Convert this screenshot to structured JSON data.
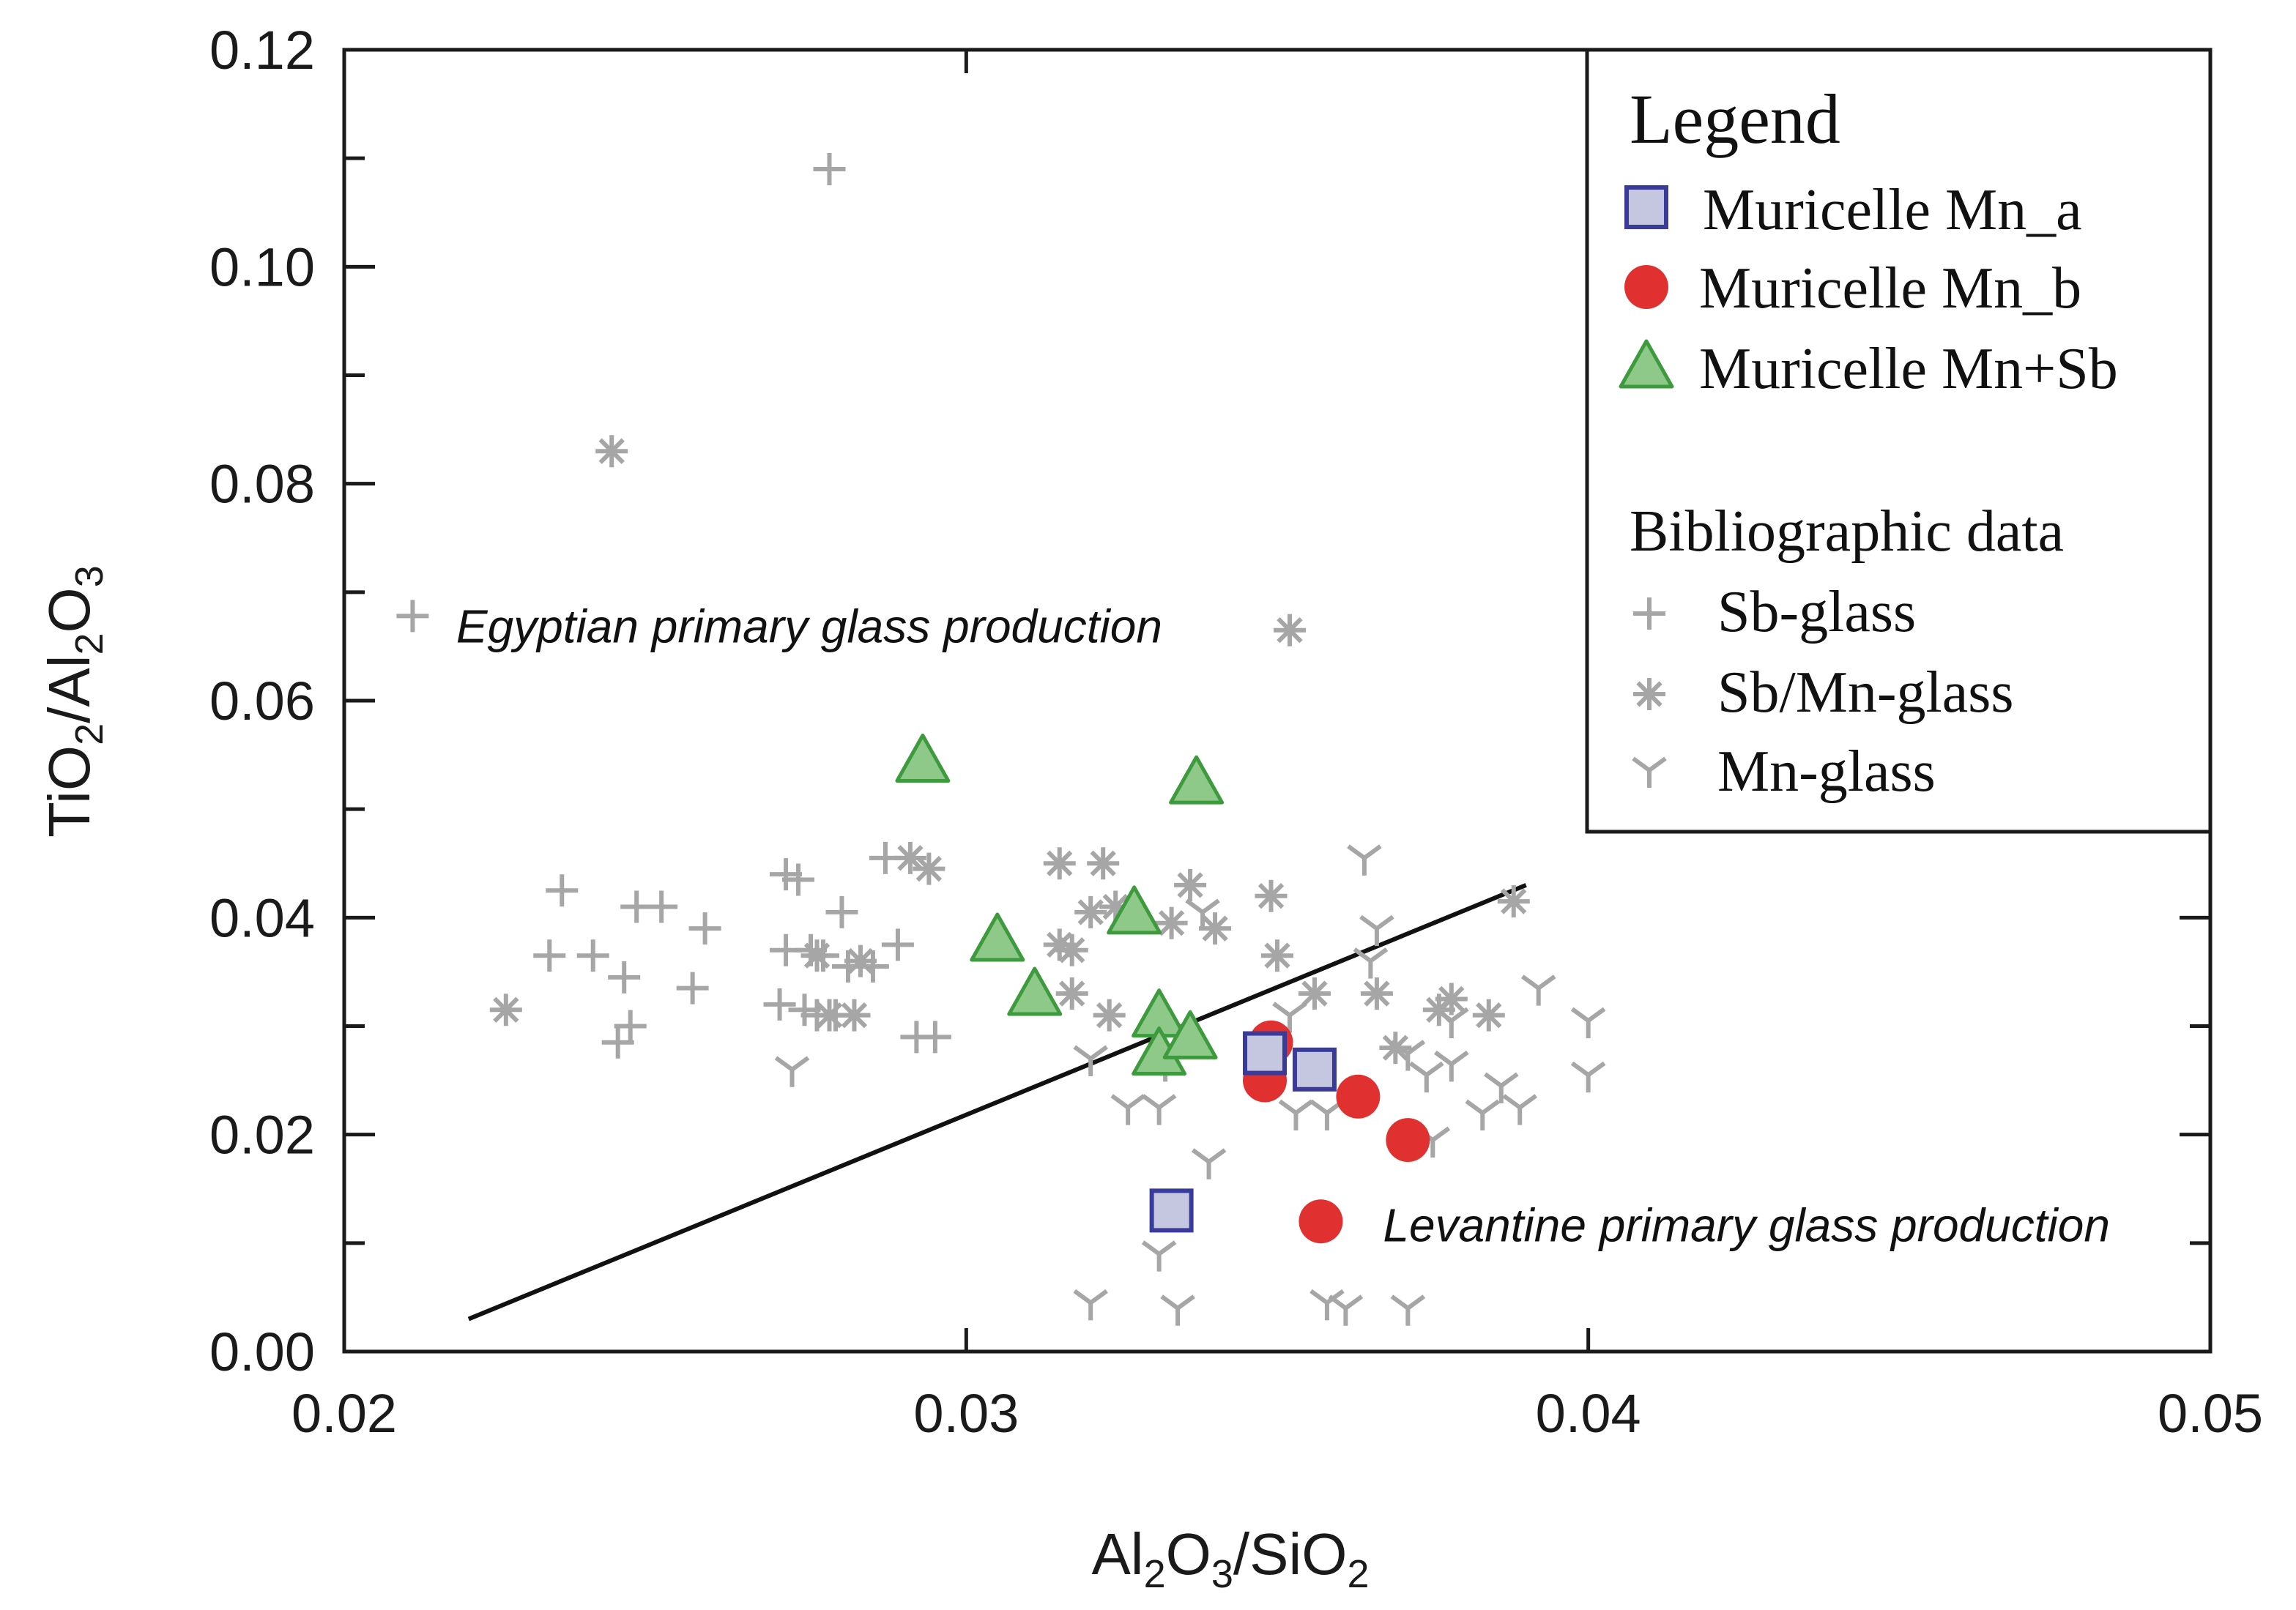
{
  "chart_data": {
    "type": "scatter",
    "title": "",
    "xlabel_parts": [
      "Al",
      "2",
      "O",
      "3",
      "/SiO",
      "2"
    ],
    "ylabel_parts": [
      "TiO",
      "2",
      "/Al",
      "2",
      "O",
      "3"
    ],
    "xlim": [
      0.02,
      0.05
    ],
    "ylim": [
      0.0,
      0.12
    ],
    "xticks": [
      0.02,
      0.03,
      0.04,
      0.05
    ],
    "xtick_labels": [
      "0.02",
      "0.03",
      "0.04",
      "0.05"
    ],
    "yticks": [
      0.0,
      0.02,
      0.04,
      0.06,
      0.08,
      0.1,
      0.12
    ],
    "ytick_labels": [
      "0.00",
      "0.02",
      "0.04",
      "0.06",
      "0.08",
      "0.10",
      "0.12"
    ],
    "grid": false,
    "legend": {
      "placement": "top-right",
      "title": "Legend",
      "subtitle": "Bibliographic data",
      "entries": [
        {
          "label": "Muricelle Mn_a",
          "series": "mn_a"
        },
        {
          "label": "Muricelle Mn_b",
          "series": "mn_b"
        },
        {
          "label": "Muricelle Mn+Sb",
          "series": "mn_sb"
        },
        {
          "label": "Sb-glass",
          "series": "sb_glass"
        },
        {
          "label": "Sb/Mn-glass",
          "series": "sbmn_glass"
        },
        {
          "label": "Mn-glass",
          "series": "mn_glass"
        }
      ]
    },
    "annotations": [
      {
        "text": "Egyptian primary glass production",
        "x": 0.0218,
        "y": 0.0667
      },
      {
        "text": "Levantine primary glass production",
        "x": 0.0367,
        "y": 0.0115
      }
    ],
    "line": {
      "name": "discrimination line",
      "x": [
        0.022,
        0.039
      ],
      "y": [
        0.003,
        0.043
      ]
    },
    "series": [
      {
        "id": "sb_glass",
        "name": "Sb-glass",
        "marker": "plus",
        "color": "#a6a6a6",
        "points": [
          [
            0.0278,
            0.109
          ],
          [
            0.0211,
            0.0678
          ],
          [
            0.0235,
            0.0425
          ],
          [
            0.0233,
            0.0365
          ],
          [
            0.024,
            0.0365
          ],
          [
            0.0245,
            0.0345
          ],
          [
            0.0247,
            0.041
          ],
          [
            0.0251,
            0.041
          ],
          [
            0.0256,
            0.0335
          ],
          [
            0.0258,
            0.039
          ],
          [
            0.0244,
            0.0285
          ],
          [
            0.0246,
            0.03
          ],
          [
            0.0271,
            0.044
          ],
          [
            0.0273,
            0.0435
          ],
          [
            0.0271,
            0.037
          ],
          [
            0.0275,
            0.037
          ],
          [
            0.027,
            0.032
          ],
          [
            0.0274,
            0.0315
          ],
          [
            0.0276,
            0.031
          ],
          [
            0.0279,
            0.031
          ],
          [
            0.0277,
            0.0365
          ],
          [
            0.0281,
            0.0355
          ],
          [
            0.028,
            0.0405
          ],
          [
            0.0285,
            0.0355
          ],
          [
            0.0287,
            0.0455
          ],
          [
            0.0289,
            0.0375
          ],
          [
            0.0292,
            0.029
          ],
          [
            0.0295,
            0.029
          ]
        ]
      },
      {
        "id": "sbmn_glass",
        "name": "Sb/Mn-glass",
        "marker": "asterisk",
        "color": "#a6a6a6",
        "points": [
          [
            0.0243,
            0.083
          ],
          [
            0.0352,
            0.0665
          ],
          [
            0.0226,
            0.0315
          ],
          [
            0.0276,
            0.0365
          ],
          [
            0.0278,
            0.031
          ],
          [
            0.0282,
            0.031
          ],
          [
            0.0283,
            0.036
          ],
          [
            0.0291,
            0.0455
          ],
          [
            0.0294,
            0.0445
          ],
          [
            0.0315,
            0.045
          ],
          [
            0.0322,
            0.045
          ],
          [
            0.032,
            0.0405
          ],
          [
            0.0324,
            0.041
          ],
          [
            0.0315,
            0.0375
          ],
          [
            0.0317,
            0.037
          ],
          [
            0.0317,
            0.033
          ],
          [
            0.0323,
            0.031
          ],
          [
            0.0333,
            0.0395
          ],
          [
            0.0336,
            0.043
          ],
          [
            0.034,
            0.039
          ],
          [
            0.0349,
            0.042
          ],
          [
            0.035,
            0.0365
          ],
          [
            0.0356,
            0.033
          ],
          [
            0.0366,
            0.033
          ],
          [
            0.0369,
            0.028
          ],
          [
            0.0376,
            0.0315
          ],
          [
            0.0378,
            0.0325
          ],
          [
            0.0384,
            0.031
          ],
          [
            0.0388,
            0.0415
          ]
        ]
      },
      {
        "id": "mn_glass",
        "name": "Mn-glass",
        "marker": "y",
        "color": "#a6a6a6",
        "points": [
          [
            0.0272,
            0.026
          ],
          [
            0.032,
            0.027
          ],
          [
            0.0326,
            0.0225
          ],
          [
            0.0331,
            0.0225
          ],
          [
            0.0332,
            0.0265
          ],
          [
            0.0339,
            0.0175
          ],
          [
            0.0338,
            0.0405
          ],
          [
            0.0331,
            0.009
          ],
          [
            0.032,
            0.0045
          ],
          [
            0.0334,
            0.004
          ],
          [
            0.0352,
            0.031
          ],
          [
            0.0353,
            0.022
          ],
          [
            0.0358,
            0.022
          ],
          [
            0.0358,
            0.0045
          ],
          [
            0.0361,
            0.004
          ],
          [
            0.0364,
            0.0455
          ],
          [
            0.0365,
            0.036
          ],
          [
            0.0366,
            0.039
          ],
          [
            0.0371,
            0.004
          ],
          [
            0.0371,
            0.0275
          ],
          [
            0.0374,
            0.0255
          ],
          [
            0.0375,
            0.0195
          ],
          [
            0.0378,
            0.0305
          ],
          [
            0.0378,
            0.0265
          ],
          [
            0.0383,
            0.022
          ],
          [
            0.0386,
            0.0245
          ],
          [
            0.0389,
            0.0225
          ],
          [
            0.0392,
            0.0335
          ],
          [
            0.04,
            0.0305
          ],
          [
            0.04,
            0.0255
          ]
        ]
      },
      {
        "id": "mn_sb",
        "name": "Muricelle Mn+Sb",
        "marker": "triangle",
        "color": "#8fc98a",
        "edge": "#3d9a3d",
        "points": [
          [
            0.0293,
            0.0545
          ],
          [
            0.0337,
            0.0525
          ],
          [
            0.0305,
            0.038
          ],
          [
            0.0327,
            0.0405
          ],
          [
            0.0311,
            0.033
          ],
          [
            0.0331,
            0.031
          ],
          [
            0.0331,
            0.0275
          ],
          [
            0.0336,
            0.029
          ]
        ]
      },
      {
        "id": "mn_b",
        "name": "Muricelle Mn_b",
        "marker": "circle",
        "color": "#e03030",
        "points": [
          [
            0.0349,
            0.0285
          ],
          [
            0.0348,
            0.025
          ],
          [
            0.0363,
            0.0235
          ],
          [
            0.0371,
            0.0195
          ],
          [
            0.0357,
            0.012
          ]
        ]
      },
      {
        "id": "mn_a",
        "name": "Muricelle Mn_a",
        "marker": "square",
        "color": "#c5c6e0",
        "edge": "#3a3a9a",
        "points": [
          [
            0.0348,
            0.0275
          ],
          [
            0.0356,
            0.026
          ],
          [
            0.0333,
            0.013
          ]
        ]
      }
    ]
  }
}
